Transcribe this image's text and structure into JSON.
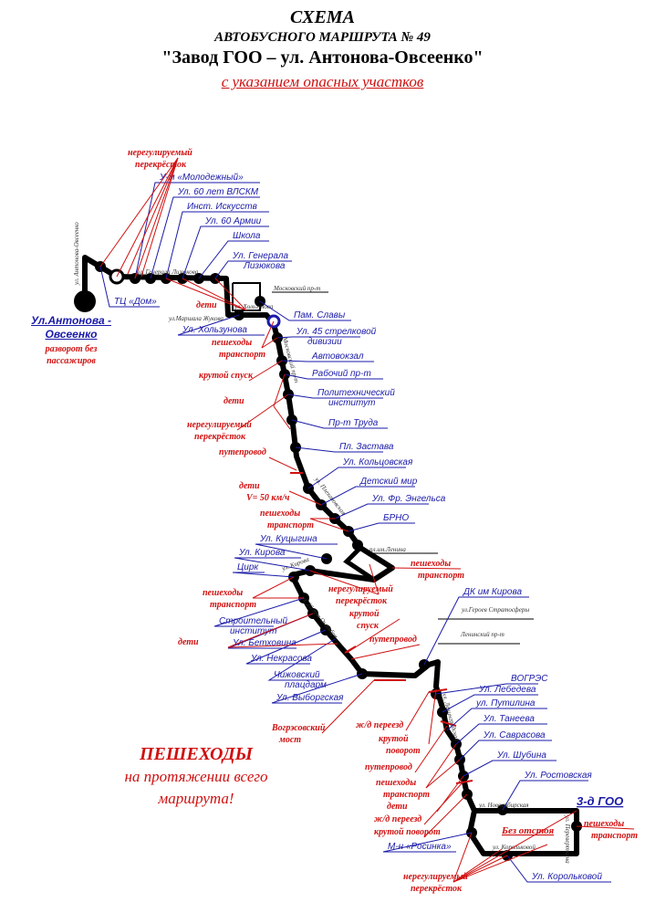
{
  "header": {
    "title": "СХЕМА",
    "subtitle": "АВТОБУСНОГО МАРШРУТА № 49",
    "route": "\"Завод ГОО – ул. Антонова-Овсеенко\"",
    "note": "с указанием опасных участков"
  },
  "termini": {
    "start": "Ул.Антонова - Овсеенко",
    "start_note": "разворот без пассажиров",
    "end": "3-д ГОО",
    "end_note": "Без отстоя"
  },
  "stops": [
    "У-м «Молодежный»",
    "Ул. 60 лет ВЛСКМ",
    "Инст. Искусств",
    "Ул. 60 Армии",
    "Школа",
    "Ул. Генерала Лизюкова",
    "ТЦ «Дом»",
    "Ул. Хользунова",
    "Пам. Славы",
    "Ул. 45 стрелковой дивизии",
    "Автовокзал",
    "Рабочий пр-т",
    "Политехнический институт",
    "Пр-т Труда",
    "Пл. Застава",
    "Ул. Кольцовская",
    "Детский мир",
    "Ул. Фр. Энгельса",
    "БРНО",
    "Ул. Куцыгина",
    "Ул. Кирова",
    "Цирк",
    "Строительный институт",
    "Ул. Бетховина",
    "Ул. Некрасова",
    "Чижовский плацдарм",
    "Ул. Выборгская",
    "ДК им Кирова",
    "ВОГРЭС",
    "Ул. Лебедева",
    "ул. Путилина",
    "Ул. Танеева",
    "Ул. Саврасова",
    "Ул. Шубина",
    "Ул. Ростовская",
    "М-н «Росинка»",
    "Ул. Корольковой"
  ],
  "streets": [
    "ул. Генерала Лизюкова",
    "Московский пр-т",
    "ул.Маршала Жукова",
    "ул. Хользунова",
    "ул. Антонова-Овсеенко",
    "пл.им.Ленина",
    "ул.Героев Стратосферы",
    "Ленинский пр-т",
    "ул. Новосибирская",
    "ул. Корольковой",
    "Московский пр-т",
    "ул. Плехановская",
    "ул. Кирова",
    "ул. 20 лет Октября",
    "ул. Ленинградская",
    "ул. Переверткина"
  ],
  "hazards": {
    "unreg": "нерегулируемый перекрёсток",
    "unreg1": "нерегулируемый",
    "unreg2": "перекрёсток",
    "children": "дети",
    "children_speed": "V= 50 км/ч",
    "ped1": "пешеходы",
    "ped2": "транспорт",
    "steep": "крутой спуск",
    "steep1": "крутой",
    "steep2": "спуск",
    "overpass": "путепровод",
    "rail": "ж/д переезд",
    "turn1": "крутой",
    "turn2": "поворот",
    "sharp_turn": "крутой поворот",
    "bridge1": "Вогрэсовский",
    "bridge2": "мост"
  },
  "warning": {
    "line1": "ПЕШЕХОДЫ",
    "line2": "на протяжении всего",
    "line3": "маршрута!"
  },
  "colors": {
    "stop": "#1a1aa8",
    "hazard": "#d01010",
    "route": "#000000"
  }
}
